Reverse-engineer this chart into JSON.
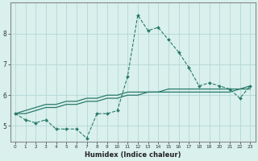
{
  "xlabel": "Humidex (Indice chaleur)",
  "x": [
    0,
    1,
    2,
    3,
    4,
    5,
    6,
    7,
    8,
    9,
    10,
    11,
    12,
    13,
    14,
    15,
    16,
    17,
    18,
    19,
    20,
    21,
    22,
    23
  ],
  "line1": [
    5.4,
    5.2,
    5.1,
    5.2,
    4.9,
    4.9,
    4.9,
    4.6,
    5.4,
    5.4,
    5.5,
    6.6,
    8.6,
    8.1,
    8.2,
    7.8,
    7.4,
    6.9,
    6.3,
    6.4,
    6.3,
    6.2,
    5.9,
    6.3
  ],
  "line2": [
    5.4,
    5.4,
    5.5,
    5.6,
    5.6,
    5.7,
    5.7,
    5.8,
    5.8,
    5.9,
    5.9,
    6.0,
    6.0,
    6.1,
    6.1,
    6.2,
    6.2,
    6.2,
    6.2,
    6.2,
    6.2,
    6.2,
    6.2,
    6.3
  ],
  "line3": [
    5.4,
    5.5,
    5.6,
    5.7,
    5.7,
    5.8,
    5.8,
    5.9,
    5.9,
    6.0,
    6.0,
    6.1,
    6.1,
    6.1,
    6.1,
    6.1,
    6.1,
    6.1,
    6.1,
    6.1,
    6.1,
    6.1,
    6.2,
    6.2
  ],
  "line_color": "#2a7a6a",
  "bg_color": "#d9f0ed",
  "grid_color": "#b5d8d3",
  "border_color": "#888888",
  "ylim": [
    4.5,
    9.0
  ],
  "yticks": [
    5,
    6,
    7,
    8
  ],
  "xticks": [
    0,
    1,
    2,
    3,
    4,
    5,
    6,
    7,
    8,
    9,
    10,
    11,
    12,
    13,
    14,
    15,
    16,
    17,
    18,
    19,
    20,
    21,
    22,
    23
  ],
  "xlim": [
    -0.5,
    23.5
  ]
}
